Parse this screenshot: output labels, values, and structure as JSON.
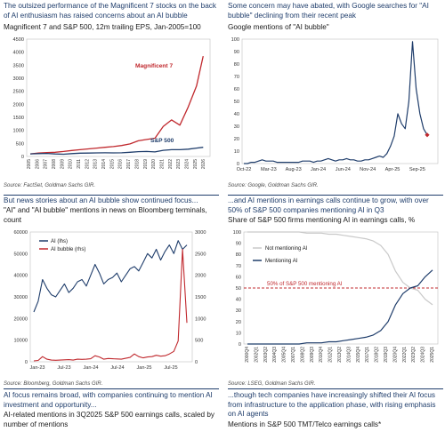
{
  "panels": [
    {
      "title": "The outsized performance of the Magnificent 7 stocks on the back of AI enthusiasm has raised concerns about an AI bubble",
      "subtitle": "Magnificent 7 and S&P 500, 12m trailing EPS, Jan-2005=100",
      "source": "Source: FactSet, Goldman Sachs GIR."
    },
    {
      "title": "Some concern may have abated, with Google searches for \"AI bubble\" declining from their recent peak",
      "subtitle": "Google mentions of \"AI bubble\"",
      "source": "Source: Google, Goldman Sachs GIR."
    },
    {
      "title": "But news stories about an AI bubble show continued focus...",
      "subtitle": "\"AI\" and \"AI bubble\" mentions in news on Bloomberg terminals, count",
      "source": "Source: Bloomberg, Goldman Sachs GIR."
    },
    {
      "title": "...and AI mentions in earnings calls continue to grow, with over 50% of S&P 500 companies mentioning AI in Q3",
      "subtitle": "Share of S&P 500 firms mentioning AI in earnings calls, %",
      "source": "Source: LSEG, Goldman Sachs GIR."
    },
    {
      "title": "AI focus remains broad, with companies continuing to mention AI investment and opportunity...",
      "subtitle": "AI-related mentions in 3Q2025 S&P 500 earnings calls, scaled by number of mentions"
    },
    {
      "title": "...though tech companies have increasingly shifted their AI focus from infrastructure to the application phase, with rising emphasis on AI agents",
      "subtitle": "Mentions in S&P 500 TMT/Telco earnings calls*"
    }
  ],
  "chart_data": [
    {
      "type": "line",
      "x": [
        2005,
        2006,
        2007,
        2008,
        2009,
        2010,
        2011,
        2012,
        2013,
        2014,
        2015,
        2016,
        2017,
        2018,
        2019,
        2020,
        2021,
        2022,
        2023,
        2024,
        2025,
        2025.8
      ],
      "xticks": [
        "2005",
        "2006",
        "2007",
        "2008",
        "2009",
        "2010",
        "2011",
        "2012",
        "2013",
        "2014",
        "2015",
        "2016",
        "2017",
        "2018",
        "2019",
        "2020",
        "2021",
        "2022",
        "2023",
        "2024",
        "2025",
        "2026"
      ],
      "ylim": [
        0,
        4500
      ],
      "yticks": [
        "0",
        "500",
        "1000",
        "1500",
        "2000",
        "2500",
        "3000",
        "3500",
        "4000",
        "4500"
      ],
      "series": [
        {
          "name": "Magnificent 7",
          "color": "#c0282d",
          "values": [
            100,
            130,
            150,
            160,
            190,
            230,
            260,
            290,
            320,
            350,
            380,
            420,
            480,
            600,
            650,
            700,
            1150,
            1400,
            1200,
            1900,
            2700,
            3850
          ]
        },
        {
          "name": "S&P 500",
          "color": "#1f3d6b",
          "values": [
            100,
            110,
            115,
            95,
            85,
            110,
            125,
            130,
            135,
            140,
            135,
            140,
            160,
            185,
            190,
            175,
            235,
            260,
            260,
            280,
            320,
            350
          ]
        }
      ]
    },
    {
      "type": "line",
      "xticks": [
        "Oct-22",
        "Mar-23",
        "Aug-23",
        "Jan-24",
        "Jun-24",
        "Nov-24",
        "Apr-25",
        "Sep-25"
      ],
      "ylim": [
        0,
        100
      ],
      "yticks": [
        "0",
        "10",
        "20",
        "30",
        "40",
        "50",
        "60",
        "70",
        "80",
        "90",
        "100"
      ],
      "series": [
        {
          "color": "#1f3d6b",
          "values": [
            0,
            0,
            1,
            1,
            2,
            3,
            2,
            2,
            2,
            1,
            1,
            1,
            1,
            1,
            1,
            1,
            2,
            2,
            2,
            1,
            2,
            2,
            3,
            4,
            3,
            2,
            3,
            3,
            4,
            3,
            3,
            2,
            2,
            3,
            3,
            4,
            5,
            6,
            5,
            8,
            14,
            22,
            40,
            32,
            28,
            50,
            98,
            60,
            40,
            28,
            23
          ]
        }
      ],
      "marker_color": "#c0282d"
    },
    {
      "type": "line",
      "xticks": [
        "Jan-23",
        "Jul-23",
        "Jan-24",
        "Jul-24",
        "Jan-25",
        "Jul-25"
      ],
      "ylim": [
        0,
        60000
      ],
      "y2lim": [
        0,
        3000
      ],
      "yticks": [
        "0",
        "10000",
        "20000",
        "30000",
        "40000",
        "50000",
        "60000"
      ],
      "y2ticks": [
        "0",
        "500",
        "1000",
        "1500",
        "2000",
        "2500",
        "3000"
      ],
      "series": [
        {
          "name": "AI (lhs)",
          "color": "#1f3d6b",
          "values": [
            23000,
            28000,
            38000,
            34000,
            31000,
            30000,
            33000,
            36000,
            32000,
            34000,
            37000,
            38000,
            35000,
            40000,
            45000,
            41000,
            36000,
            38000,
            39000,
            41000,
            37000,
            40000,
            43000,
            44000,
            42000,
            46000,
            50000,
            48000,
            52000,
            47000,
            51000,
            54000,
            50000,
            56000,
            52000,
            54000
          ]
        },
        {
          "name": "AI bubble (rhs)",
          "color": "#c0282d",
          "values": [
            20,
            30,
            120,
            60,
            40,
            35,
            40,
            45,
            50,
            40,
            60,
            55,
            60,
            70,
            140,
            110,
            60,
            75,
            70,
            65,
            60,
            80,
            100,
            180,
            120,
            90,
            110,
            120,
            150,
            130,
            140,
            180,
            240,
            480,
            2600,
            900
          ]
        }
      ]
    },
    {
      "type": "line",
      "xticks": [
        "2000Q4",
        "2002Q1",
        "2003Q2",
        "2004Q3",
        "2005Q4",
        "2007Q1",
        "2008Q2",
        "2009Q3",
        "2010Q4",
        "2012Q1",
        "2013Q2",
        "2014Q3",
        "2015Q4",
        "2017Q1",
        "2018Q2",
        "2019Q3",
        "2020Q4",
        "2022Q1",
        "2023Q2",
        "2024Q3",
        "2025Q1"
      ],
      "ylim": [
        0,
        100
      ],
      "yticks": [
        "0",
        "10",
        "20",
        "30",
        "40",
        "50",
        "60",
        "70",
        "80",
        "90",
        "100"
      ],
      "series": [
        {
          "name": "Not mentioning AI",
          "color": "#c9c9c9",
          "values": [
            100,
            100,
            100,
            100,
            100,
            100,
            100,
            100,
            99,
            99,
            99,
            98,
            98,
            97,
            96,
            95,
            94,
            92,
            88,
            80,
            65,
            55,
            50,
            48,
            40,
            35
          ]
        },
        {
          "name": "Mentioning AI",
          "color": "#1f3d6b",
          "values": [
            0,
            0,
            0,
            0,
            0,
            0,
            0,
            0,
            1,
            1,
            1,
            2,
            2,
            3,
            4,
            5,
            6,
            8,
            12,
            20,
            35,
            45,
            50,
            52,
            60,
            66
          ]
        }
      ],
      "annotation": "50% of S&P 500 mentioning AI"
    }
  ]
}
